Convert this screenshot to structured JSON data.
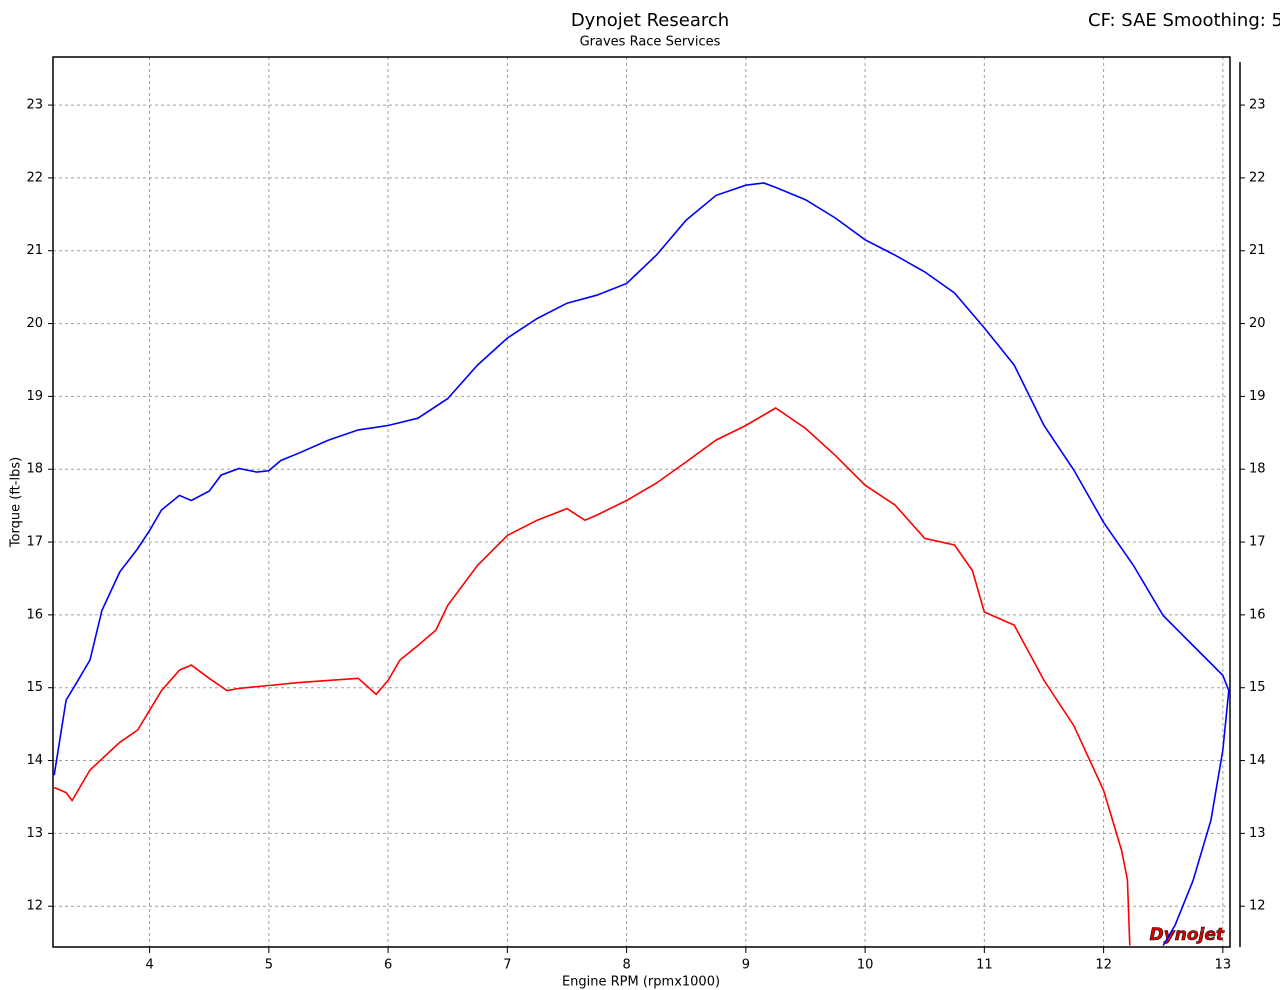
{
  "chart_data": {
    "type": "line",
    "title": "Dynojet Research",
    "subtitle": "Graves Race Services",
    "annotation": "CF: SAE Smoothing: 5",
    "logo": "Dynojet",
    "x_label": "Engine RPM (rpmx1000)",
    "y_label": "Torque (ft-lbs)",
    "xlim": [
      3.19,
      13.06
    ],
    "ylim": [
      11.44,
      23.66
    ],
    "y2lim": [
      11.44,
      23.66
    ],
    "xticks": [
      4,
      5,
      6,
      7,
      8,
      9,
      10,
      11,
      12,
      13
    ],
    "yticks": [
      12,
      13,
      14,
      15,
      16,
      17,
      18,
      19,
      20,
      21,
      22,
      23
    ],
    "y2ticks": [
      12,
      13,
      14,
      15,
      16,
      17,
      18,
      19,
      20,
      21,
      22,
      23
    ],
    "grid": true,
    "series": [
      {
        "color": "#0000ff",
        "x": [
          3.2,
          3.3,
          3.4,
          3.5,
          3.6,
          3.75,
          3.9,
          4.0,
          4.1,
          4.25,
          4.35,
          4.5,
          4.6,
          4.75,
          4.9,
          5.0,
          5.1,
          5.25,
          5.5,
          5.75,
          6.0,
          6.25,
          6.5,
          6.75,
          7.0,
          7.25,
          7.5,
          7.75,
          8.0,
          8.25,
          8.5,
          8.75,
          9.0,
          9.15,
          9.25,
          9.5,
          9.75,
          10.0,
          10.25,
          10.5,
          10.75,
          11.0,
          11.25,
          11.5,
          11.75,
          12.0,
          12.25,
          12.5,
          12.75,
          13.0,
          13.05,
          13.0,
          12.9,
          12.75,
          12.6,
          12.5
        ],
        "values": [
          13.8,
          14.83,
          15.1,
          15.38,
          16.06,
          16.59,
          16.91,
          17.16,
          17.44,
          17.64,
          17.57,
          17.7,
          17.92,
          18.01,
          17.96,
          17.98,
          18.12,
          18.22,
          18.4,
          18.54,
          18.6,
          18.7,
          18.97,
          19.43,
          19.8,
          20.07,
          20.28,
          20.39,
          20.55,
          20.94,
          21.42,
          21.76,
          21.9,
          21.93,
          21.87,
          21.7,
          21.45,
          21.15,
          20.94,
          20.71,
          20.42,
          19.94,
          19.43,
          18.6,
          17.99,
          17.27,
          16.68,
          15.99,
          15.58,
          15.17,
          14.96,
          14.14,
          13.18,
          12.35,
          11.74,
          11.46
        ]
      },
      {
        "color": "#ff0000",
        "x": [
          3.2,
          3.3,
          3.35,
          3.5,
          3.75,
          3.9,
          4.0,
          4.1,
          4.25,
          4.35,
          4.5,
          4.65,
          4.75,
          5.0,
          5.25,
          5.5,
          5.75,
          5.9,
          6.0,
          6.1,
          6.25,
          6.4,
          6.5,
          6.75,
          7.0,
          7.25,
          7.5,
          7.65,
          7.75,
          8.0,
          8.25,
          8.5,
          8.75,
          9.0,
          9.25,
          9.5,
          9.75,
          10.0,
          10.25,
          10.5,
          10.75,
          10.9,
          11.0,
          11.25,
          11.5,
          11.75,
          12.0,
          12.15,
          12.2,
          12.22
        ],
        "values": [
          13.63,
          13.56,
          13.45,
          13.87,
          14.25,
          14.42,
          14.69,
          14.96,
          15.24,
          15.31,
          15.13,
          14.96,
          14.99,
          15.03,
          15.07,
          15.1,
          15.13,
          14.91,
          15.1,
          15.38,
          15.58,
          15.79,
          16.13,
          16.68,
          17.09,
          17.3,
          17.46,
          17.3,
          17.37,
          17.57,
          17.81,
          18.1,
          18.4,
          18.6,
          18.84,
          18.56,
          18.19,
          17.78,
          17.51,
          17.05,
          16.96,
          16.61,
          16.04,
          15.86,
          15.1,
          14.48,
          13.59,
          12.77,
          12.37,
          11.46
        ]
      }
    ]
  }
}
